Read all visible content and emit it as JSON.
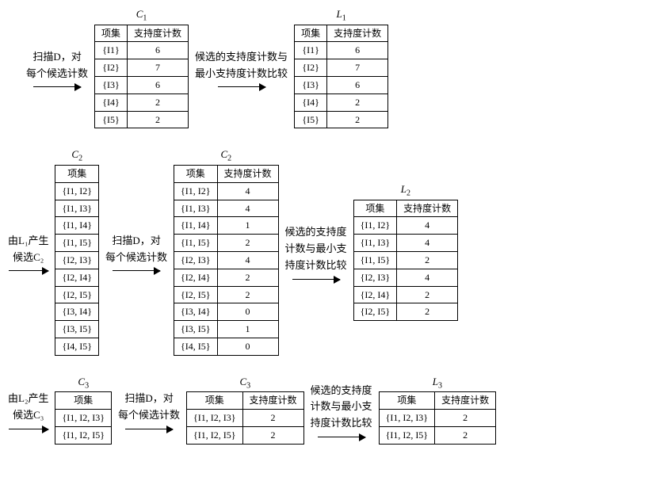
{
  "labels": {
    "itemset": "项集",
    "support": "支持度计数",
    "scan_count": "扫描D，对\n每个候选计数",
    "compare_min": "候选的支持度计数与\n最小支持度计数比较",
    "gen_c2": "由L₁产生\n候选C₂",
    "compare_min_2": "候选的支持度\n计数与最小支\n持度计数比较",
    "gen_c3": "由L₂产生\n候选C₃"
  },
  "titles": {
    "c1": "C₁",
    "l1": "L₁",
    "c2": "C₂",
    "l2": "L₂",
    "c3": "C₃",
    "l3": "L₃"
  },
  "tables": {
    "c1": {
      "headers": [
        "项集",
        "支持度计数"
      ],
      "rows": [
        [
          "{I1}",
          "6"
        ],
        [
          "{I2}",
          "7"
        ],
        [
          "{I3}",
          "6"
        ],
        [
          "{I4}",
          "2"
        ],
        [
          "{I5}",
          "2"
        ]
      ]
    },
    "l1": {
      "headers": [
        "项集",
        "支持度计数"
      ],
      "rows": [
        [
          "{I1}",
          "6"
        ],
        [
          "{I2}",
          "7"
        ],
        [
          "{I3}",
          "6"
        ],
        [
          "{I4}",
          "2"
        ],
        [
          "{I5}",
          "2"
        ]
      ]
    },
    "c2a": {
      "headers": [
        "项集"
      ],
      "rows": [
        [
          "{I1, I2}"
        ],
        [
          "{I1, I3}"
        ],
        [
          "{I1, I4}"
        ],
        [
          "{I1, I5}"
        ],
        [
          "{I2, I3}"
        ],
        [
          "{I2, I4}"
        ],
        [
          "{I2, I5}"
        ],
        [
          "{I3, I4}"
        ],
        [
          "{I3, I5}"
        ],
        [
          "{I4, I5}"
        ]
      ]
    },
    "c2b": {
      "headers": [
        "项集",
        "支持度计数"
      ],
      "rows": [
        [
          "{I1, I2}",
          "4"
        ],
        [
          "{I1, I3}",
          "4"
        ],
        [
          "{I1, I4}",
          "1"
        ],
        [
          "{I1, I5}",
          "2"
        ],
        [
          "{I2, I3}",
          "4"
        ],
        [
          "{I2, I4}",
          "2"
        ],
        [
          "{I2, I5}",
          "2"
        ],
        [
          "{I3, I4}",
          "0"
        ],
        [
          "{I3, I5}",
          "1"
        ],
        [
          "{I4, I5}",
          "0"
        ]
      ]
    },
    "l2": {
      "headers": [
        "项集",
        "支持度计数"
      ],
      "rows": [
        [
          "{I1, I2}",
          "4"
        ],
        [
          "{I1, I3}",
          "4"
        ],
        [
          "{I1, I5}",
          "2"
        ],
        [
          "{I2, I3}",
          "4"
        ],
        [
          "{I2, I4}",
          "2"
        ],
        [
          "{I2, I5}",
          "2"
        ]
      ]
    },
    "c3a": {
      "headers": [
        "项集"
      ],
      "rows": [
        [
          "{I1, I2, I3}"
        ],
        [
          "{I1, I2, I5}"
        ]
      ]
    },
    "c3b": {
      "headers": [
        "项集",
        "支持度计数"
      ],
      "rows": [
        [
          "{I1, I2, I3}",
          "2"
        ],
        [
          "{I1, I2, I5}",
          "2"
        ]
      ]
    },
    "l3": {
      "headers": [
        "项集",
        "支持度计数"
      ],
      "rows": [
        [
          "{I1, I2, I3}",
          "2"
        ],
        [
          "{I1, I2, I5}",
          "2"
        ]
      ]
    }
  },
  "style": {
    "background_color": "#ffffff",
    "border_color": "#000000",
    "text_color": "#000000",
    "font_size_body": 13,
    "font_size_cell": 12,
    "font_family": "SimSun, serif",
    "arrow_color": "#000000",
    "arrow_length": 60
  }
}
